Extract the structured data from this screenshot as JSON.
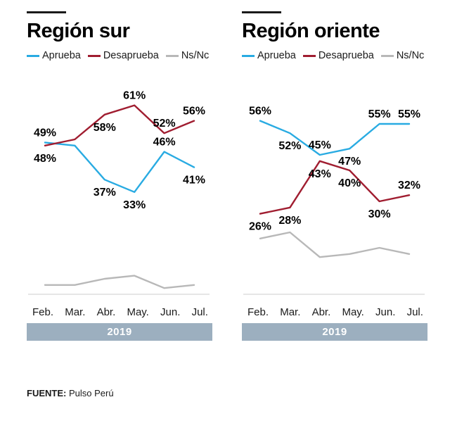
{
  "colors": {
    "aprueba": "#29ABE2",
    "desaprueba": "#A01D30",
    "nsnc": "#B8B8B8",
    "band": "#9CAFBF",
    "axis": "#CCCCCC",
    "label_text": "#000000"
  },
  "legend": [
    {
      "label": "Aprueba",
      "color_key": "aprueba"
    },
    {
      "label": "Desaprueba",
      "color_key": "desaprueba"
    },
    {
      "label": "Ns/Nc",
      "color_key": "nsnc"
    }
  ],
  "months": [
    "Feb.",
    "Mar.",
    "Abr.",
    "May.",
    "Jun.",
    "Jul."
  ],
  "year": "2019",
  "footer": {
    "source_label": "FUENTE:",
    "source_value": "Pulso Perú"
  },
  "chart_data": [
    {
      "type": "line",
      "title": "Región sur",
      "x": [
        "Feb.",
        "Mar.",
        "Abr.",
        "May.",
        "Jun.",
        "Jul."
      ],
      "xlabel": "2019",
      "ylim": [
        0,
        70
      ],
      "grid": false,
      "legend_position": "top",
      "series": [
        {
          "name": "Aprueba",
          "color_key": "aprueba",
          "values": [
            49,
            48,
            37,
            33,
            46,
            41
          ],
          "labels": [
            "49%",
            null,
            "37%",
            "33%",
            "46%",
            "41%"
          ],
          "label_pos": [
            "above",
            null,
            "below",
            "below",
            "above",
            "below"
          ]
        },
        {
          "name": "Desaprueba",
          "color_key": "desaprueba",
          "values": [
            48,
            50,
            58,
            61,
            52,
            56
          ],
          "labels": [
            "48%",
            null,
            "58%",
            "61%",
            "52%",
            "56%"
          ],
          "label_pos": [
            "below",
            null,
            "below",
            "above",
            "above",
            "above"
          ]
        },
        {
          "name": "Ns/Nc",
          "color_key": "nsnc",
          "values": [
            3,
            3,
            5,
            6,
            2,
            3
          ],
          "labels": [
            null,
            null,
            null,
            null,
            null,
            null
          ],
          "label_pos": [
            null,
            null,
            null,
            null,
            null,
            null
          ]
        }
      ]
    },
    {
      "type": "line",
      "title": "Región oriente",
      "x": [
        "Feb.",
        "Mar.",
        "Abr.",
        "May.",
        "Jun.",
        "Jul."
      ],
      "xlabel": "2019",
      "ylim": [
        0,
        70
      ],
      "grid": false,
      "legend_position": "top",
      "series": [
        {
          "name": "Aprueba",
          "color_key": "aprueba",
          "values": [
            56,
            52,
            45,
            47,
            55,
            55
          ],
          "labels": [
            "56%",
            "52%",
            "45%",
            "47%",
            "55%",
            "55%"
          ],
          "label_pos": [
            "above",
            "below",
            "above",
            "below",
            "above",
            "above"
          ]
        },
        {
          "name": "Desaprueba",
          "color_key": "desaprueba",
          "values": [
            26,
            28,
            43,
            40,
            30,
            32
          ],
          "labels": [
            "26%",
            "28%",
            "43%",
            "40%",
            "30%",
            "32%"
          ],
          "label_pos": [
            "below",
            "below",
            "below",
            "below",
            "below",
            "above"
          ]
        },
        {
          "name": "Ns/Nc",
          "color_key": "nsnc",
          "values": [
            18,
            20,
            12,
            13,
            15,
            13
          ],
          "labels": [
            null,
            null,
            null,
            null,
            null,
            null
          ],
          "label_pos": [
            null,
            null,
            null,
            null,
            null,
            null
          ]
        }
      ]
    }
  ]
}
